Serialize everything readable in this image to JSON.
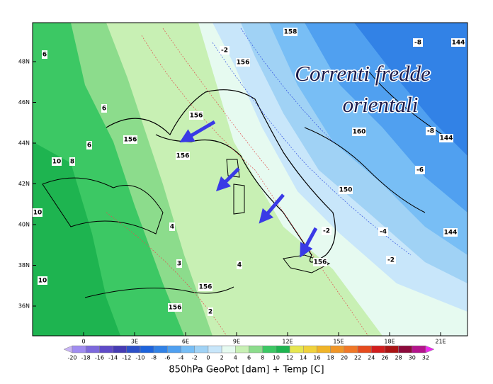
{
  "map": {
    "annotation": [
      "Correnti fredde",
      "orientali"
    ],
    "lat_labels": [
      "48N",
      "46N",
      "44N",
      "42N",
      "40N",
      "38N",
      "36N"
    ],
    "lon_labels": [
      "0",
      "3E",
      "6E",
      "9E",
      "12E",
      "15E",
      "18E",
      "21E"
    ],
    "contour_labels": [
      "6",
      "6",
      "6",
      "8",
      "10",
      "10",
      "10",
      "4",
      "3",
      "2",
      "4",
      "-2",
      "156",
      "156",
      "156",
      "156",
      "158",
      "156",
      "156",
      "160",
      "150",
      "144",
      "144",
      "144",
      "-8",
      "-8",
      "-4",
      "-2",
      "-2",
      "-6",
      "156"
    ]
  },
  "colorbar": {
    "labels": [
      -20,
      -18,
      -16,
      -14,
      -12,
      -10,
      -8,
      -6,
      -4,
      -2,
      0,
      2,
      4,
      6,
      8,
      10,
      12,
      14,
      16,
      18,
      20,
      22,
      24,
      26,
      28,
      30,
      32
    ],
    "colors": [
      "#c8b4f5",
      "#a08cf0",
      "#7d69dc",
      "#5f4bc8",
      "#463cb4",
      "#2d50c8",
      "#1e64dc",
      "#3282e6",
      "#50a0f0",
      "#78bef5",
      "#a0d2f5",
      "#c8e6fa",
      "#e6faf0",
      "#c8f0b4",
      "#8cdc8c",
      "#3cc864",
      "#1eb450",
      "#e6e650",
      "#f0d23c",
      "#f0b428",
      "#f09628",
      "#f07828",
      "#e64b1e",
      "#d21e1e",
      "#aa1414",
      "#8c0a3c",
      "#b4148c",
      "#f028f0"
    ]
  },
  "caption": "850hPa GeoPot [dam] + Temp [C]"
}
